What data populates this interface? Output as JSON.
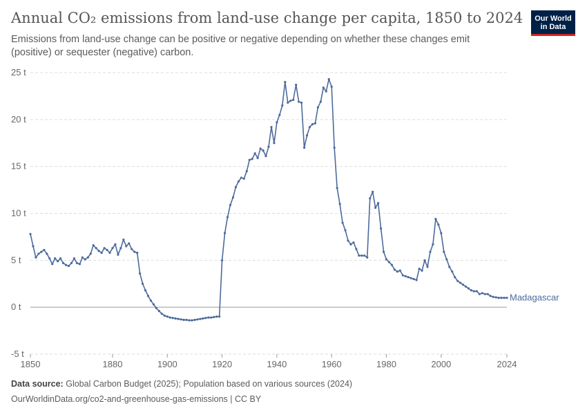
{
  "header": {
    "title": "Annual CO₂ emissions from land-use change per capita, 1850 to 2024",
    "subtitle": "Emissions from land-use change can be positive or negative depending on whether these changes emit (positive) or sequester (negative) carbon.",
    "logo_line1": "Our World",
    "logo_line2": "in Data"
  },
  "footer": {
    "source_label": "Data source:",
    "source_text": "Global Carbon Budget (2025); Population based on various sources (2024)",
    "url_text": "OurWorldinData.org/co2-and-greenhouse-gas-emissions | CC BY"
  },
  "colors": {
    "series": "#4c6a9c",
    "grid": "#dddddd",
    "zero_line": "#999999"
  },
  "chart_data": {
    "type": "line",
    "title": "Annual CO₂ emissions from land-use change per capita, 1850 to 2024",
    "xlabel": "",
    "ylabel": "",
    "xlim": [
      1850,
      2024
    ],
    "ylim": [
      -5,
      25
    ],
    "x_ticks": [
      1850,
      1880,
      1900,
      1920,
      1940,
      1960,
      1980,
      2000,
      2024
    ],
    "y_ticks": [
      -5,
      0,
      5,
      10,
      15,
      20,
      25
    ],
    "y_tick_labels": [
      "-5 t",
      "0 t",
      "5 t",
      "10 t",
      "15 t",
      "20 t",
      "25 t"
    ],
    "grid": "horizontal dashed",
    "series": [
      {
        "name": "Madagascar",
        "x": [
          1850,
          1851,
          1852,
          1853,
          1854,
          1855,
          1856,
          1857,
          1858,
          1859,
          1860,
          1861,
          1862,
          1863,
          1864,
          1865,
          1866,
          1867,
          1868,
          1869,
          1870,
          1871,
          1872,
          1873,
          1874,
          1875,
          1876,
          1877,
          1878,
          1879,
          1880,
          1881,
          1882,
          1883,
          1884,
          1885,
          1886,
          1887,
          1888,
          1889,
          1890,
          1891,
          1892,
          1893,
          1894,
          1895,
          1896,
          1897,
          1898,
          1899,
          1900,
          1901,
          1902,
          1903,
          1904,
          1905,
          1906,
          1907,
          1908,
          1909,
          1910,
          1911,
          1912,
          1913,
          1914,
          1915,
          1916,
          1917,
          1918,
          1919,
          1920,
          1921,
          1922,
          1923,
          1924,
          1925,
          1926,
          1927,
          1928,
          1929,
          1930,
          1931,
          1932,
          1933,
          1934,
          1935,
          1936,
          1937,
          1938,
          1939,
          1940,
          1941,
          1942,
          1943,
          1944,
          1945,
          1946,
          1947,
          1948,
          1949,
          1950,
          1951,
          1952,
          1953,
          1954,
          1955,
          1956,
          1957,
          1958,
          1959,
          1960,
          1961,
          1962,
          1963,
          1964,
          1965,
          1966,
          1967,
          1968,
          1969,
          1970,
          1971,
          1972,
          1973,
          1974,
          1975,
          1976,
          1977,
          1978,
          1979,
          1980,
          1981,
          1982,
          1983,
          1984,
          1985,
          1986,
          1987,
          1988,
          1989,
          1990,
          1991,
          1992,
          1993,
          1994,
          1995,
          1996,
          1997,
          1998,
          1999,
          2000,
          2001,
          2002,
          2003,
          2004,
          2005,
          2006,
          2007,
          2008,
          2009,
          2010,
          2011,
          2012,
          2013,
          2014,
          2015,
          2016,
          2017,
          2018,
          2019,
          2020,
          2021,
          2022,
          2023,
          2024
        ],
        "y": [
          7.8,
          6.5,
          5.3,
          5.7,
          5.9,
          6.1,
          5.7,
          5.2,
          4.6,
          5.2,
          4.9,
          5.2,
          4.7,
          4.5,
          4.4,
          4.7,
          5.2,
          4.7,
          4.6,
          5.3,
          5.1,
          5.3,
          5.7,
          6.6,
          6.3,
          6.0,
          5.8,
          6.3,
          6.1,
          5.8,
          6.3,
          6.7,
          5.6,
          6.3,
          7.2,
          6.5,
          6.8,
          6.2,
          5.9,
          5.8,
          3.6,
          2.5,
          1.8,
          1.2,
          0.7,
          0.3,
          -0.1,
          -0.4,
          -0.7,
          -0.9,
          -1.0,
          -1.1,
          -1.15,
          -1.2,
          -1.25,
          -1.3,
          -1.35,
          -1.35,
          -1.4,
          -1.4,
          -1.35,
          -1.3,
          -1.25,
          -1.2,
          -1.15,
          -1.1,
          -1.1,
          -1.05,
          -1.0,
          -1.0,
          5.0,
          7.9,
          9.6,
          10.9,
          11.7,
          12.8,
          13.4,
          13.8,
          13.7,
          14.5,
          15.7,
          15.8,
          16.4,
          15.9,
          16.9,
          16.7,
          16.1,
          17.1,
          19.2,
          17.5,
          19.7,
          20.5,
          21.5,
          24.0,
          21.8,
          22.0,
          22.1,
          23.7,
          21.9,
          21.8,
          17.0,
          18.3,
          19.2,
          19.5,
          19.6,
          21.3,
          21.9,
          23.4,
          23.0,
          24.3,
          23.5,
          17.0,
          12.7,
          11.0,
          9.0,
          8.2,
          7.1,
          6.7,
          6.9,
          6.2,
          5.5,
          5.5,
          5.5,
          5.3,
          11.6,
          12.3,
          10.6,
          11.1,
          8.4,
          5.9,
          5.1,
          4.8,
          4.5,
          4.0,
          3.8,
          3.9,
          3.4,
          3.3,
          3.2,
          3.1,
          3.0,
          2.9,
          4.1,
          3.9,
          5.0,
          4.3,
          5.9,
          6.7,
          9.4,
          8.8,
          7.9,
          5.9,
          5.1,
          4.3,
          3.8,
          3.2,
          2.8,
          2.6,
          2.4,
          2.2,
          2.0,
          1.8,
          1.7,
          1.7,
          1.4,
          1.5,
          1.4,
          1.4,
          1.2,
          1.1,
          1.05,
          1.0,
          1.0,
          1.0,
          1.0
        ]
      }
    ]
  }
}
